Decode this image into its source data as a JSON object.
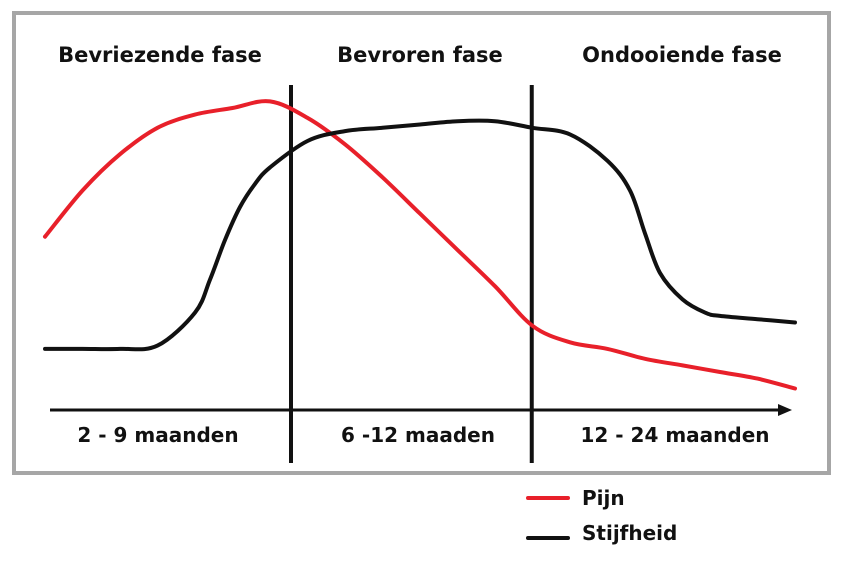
{
  "chart_data": {
    "type": "line",
    "phases": [
      {
        "name": "Bevriezende fase",
        "duration": "2 - 9 maanden"
      },
      {
        "name": "Bevroren fase",
        "duration": "6 -12 maaden"
      },
      {
        "name": "Ondooiende fase",
        "duration": "12 - 24 maanden"
      }
    ],
    "xlim": [
      0,
      100
    ],
    "ylim": [
      0,
      100
    ],
    "phase_boundaries": [
      32.8,
      64.9
    ],
    "series": [
      {
        "name": "Pijn",
        "color": "#e8202a",
        "x": [
          0,
          5,
          10,
          15,
          20,
          25,
          30,
          35,
          40,
          45,
          50,
          55,
          60,
          65,
          70,
          75,
          80,
          85,
          90,
          95,
          100
        ],
        "y": [
          51,
          65,
          76,
          84,
          88,
          90,
          92,
          87,
          79,
          69,
          58,
          47,
          36,
          24,
          19,
          17,
          14,
          12,
          10,
          8,
          5
        ]
      },
      {
        "name": "Stijfheid",
        "color": "#111111",
        "x": [
          0,
          5,
          10,
          15,
          20,
          22,
          24,
          26,
          28,
          30,
          35,
          40,
          45,
          50,
          55,
          60,
          65,
          70,
          75,
          78,
          80,
          82,
          85,
          88,
          90,
          95,
          100
        ],
        "y": [
          17,
          17,
          17,
          18,
          28,
          38,
          50,
          60,
          67,
          72,
          80,
          83,
          84,
          85,
          86,
          86,
          84,
          82,
          74,
          65,
          52,
          40,
          32,
          28,
          27,
          26,
          25
        ]
      }
    ]
  }
}
